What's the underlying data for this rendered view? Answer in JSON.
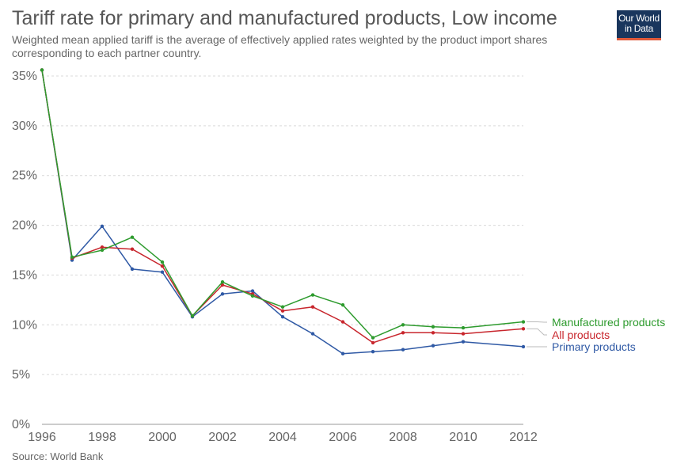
{
  "header": {
    "title": "Tariff rate for primary and manufactured products, Low income",
    "subtitle": "Weighted mean applied tariff is the average of effectively applied rates weighted by the product import shares corresponding to each partner country.",
    "logo_line1": "Our World",
    "logo_line2": "in Data"
  },
  "footer": {
    "source": "Source: World Bank"
  },
  "colors": {
    "manufactured": "#2e9b2e",
    "all": "#c8262d",
    "primary": "#2f59a5",
    "grid": "#d9d9d9",
    "text": "#666666"
  },
  "chart_data": {
    "type": "line",
    "x": [
      1996,
      1997,
      1998,
      1999,
      2000,
      2001,
      2002,
      2003,
      2004,
      2005,
      2006,
      2007,
      2008,
      2009,
      2010,
      2012
    ],
    "xlim": [
      1996,
      2012
    ],
    "ylim": [
      0,
      35
    ],
    "x_ticks": [
      "1996",
      "1998",
      "2000",
      "2002",
      "2004",
      "2006",
      "2008",
      "2010",
      "2012"
    ],
    "x_tick_values": [
      1996,
      1998,
      2000,
      2002,
      2004,
      2006,
      2008,
      2010,
      2012
    ],
    "y_ticks": [
      "0%",
      "5%",
      "10%",
      "15%",
      "20%",
      "25%",
      "30%",
      "35%"
    ],
    "y_tick_values": [
      0,
      5,
      10,
      15,
      20,
      25,
      30,
      35
    ],
    "grid": true,
    "legend_placement": "right-end labels",
    "series": [
      {
        "name": "Manufactured products",
        "color": "#2e9b2e",
        "values": [
          35.6,
          16.8,
          17.5,
          18.8,
          16.3,
          10.9,
          14.3,
          12.9,
          11.8,
          13.0,
          12.0,
          8.7,
          10.0,
          9.8,
          9.7,
          10.3
        ]
      },
      {
        "name": "All products",
        "color": "#c8262d",
        "values": [
          35.6,
          16.7,
          17.8,
          17.6,
          15.9,
          10.9,
          14.0,
          13.1,
          11.4,
          11.8,
          10.3,
          8.2,
          9.2,
          9.2,
          9.1,
          9.6
        ]
      },
      {
        "name": "Primary products",
        "color": "#2f59a5",
        "values": [
          35.6,
          16.5,
          19.9,
          15.6,
          15.3,
          10.8,
          13.1,
          13.4,
          10.8,
          9.1,
          7.1,
          7.3,
          7.5,
          7.9,
          8.3,
          7.8
        ]
      }
    ]
  }
}
